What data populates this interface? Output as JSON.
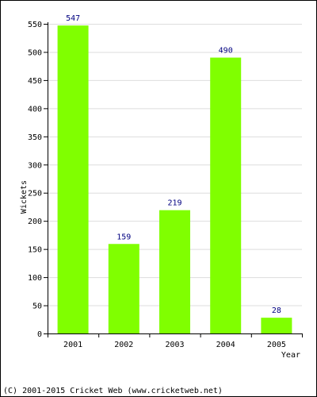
{
  "chart_data": {
    "type": "bar",
    "categories": [
      "2001",
      "2002",
      "2003",
      "2004",
      "2005"
    ],
    "values": [
      547,
      159,
      219,
      490,
      28
    ],
    "title": "",
    "xlabel": "Year",
    "ylabel": "Wickets",
    "ylim": [
      0,
      550
    ],
    "yticks": [
      0,
      50,
      100,
      150,
      200,
      250,
      300,
      350,
      400,
      450,
      500,
      550
    ],
    "grid": true,
    "bar_color": "#80ff00",
    "value_label_color": "#000080",
    "axis_color": "#000000",
    "grid_color": "#dddddd"
  },
  "footer": {
    "copyright": "(C) 2001-2015 Cricket Web (www.cricketweb.net)"
  }
}
